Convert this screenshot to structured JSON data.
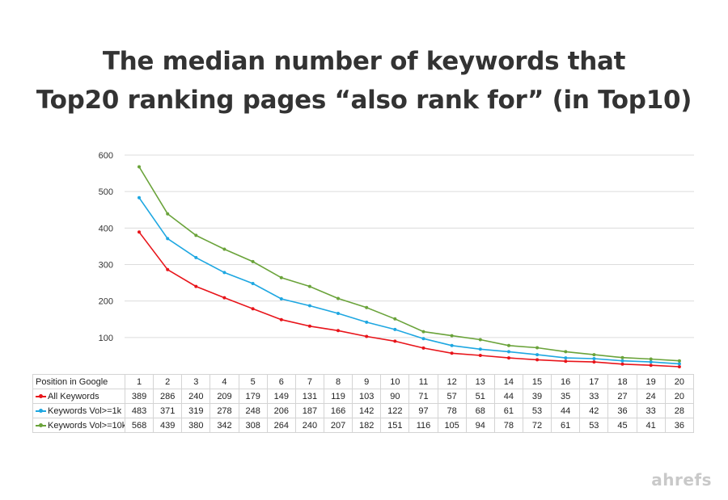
{
  "title_lines": [
    "The median number of keywords that",
    "Top20 ranking pages “also rank for” (in Top10)"
  ],
  "brand": "ahrefs",
  "colors": {
    "all": "#e8141a",
    "vol1k": "#1ea7e1",
    "vol10k": "#6aa33a",
    "grid": "#dcdcdc"
  },
  "chart_data": {
    "type": "line",
    "x": [
      1,
      2,
      3,
      4,
      5,
      6,
      7,
      8,
      9,
      10,
      11,
      12,
      13,
      14,
      15,
      16,
      17,
      18,
      19,
      20
    ],
    "xlabel": "Position in Google",
    "ylim": [
      0,
      600
    ],
    "yticks": [
      100,
      200,
      300,
      400,
      500,
      600
    ],
    "grid": true,
    "legend": "table-left",
    "series": [
      {
        "name": "All Keywords",
        "color": "#e8141a",
        "values": [
          389,
          286,
          240,
          209,
          179,
          149,
          131,
          119,
          103,
          90,
          71,
          57,
          51,
          44,
          39,
          35,
          33,
          27,
          24,
          20
        ]
      },
      {
        "name": "Keywords Vol>=1k",
        "color": "#1ea7e1",
        "values": [
          483,
          371,
          319,
          278,
          248,
          206,
          187,
          166,
          142,
          122,
          97,
          78,
          68,
          61,
          53,
          44,
          42,
          36,
          33,
          28
        ]
      },
      {
        "name": "Keywords Vol>=10k",
        "color": "#6aa33a",
        "values": [
          568,
          439,
          380,
          342,
          308,
          264,
          240,
          207,
          182,
          151,
          116,
          105,
          94,
          78,
          72,
          61,
          53,
          45,
          41,
          36
        ]
      }
    ]
  }
}
